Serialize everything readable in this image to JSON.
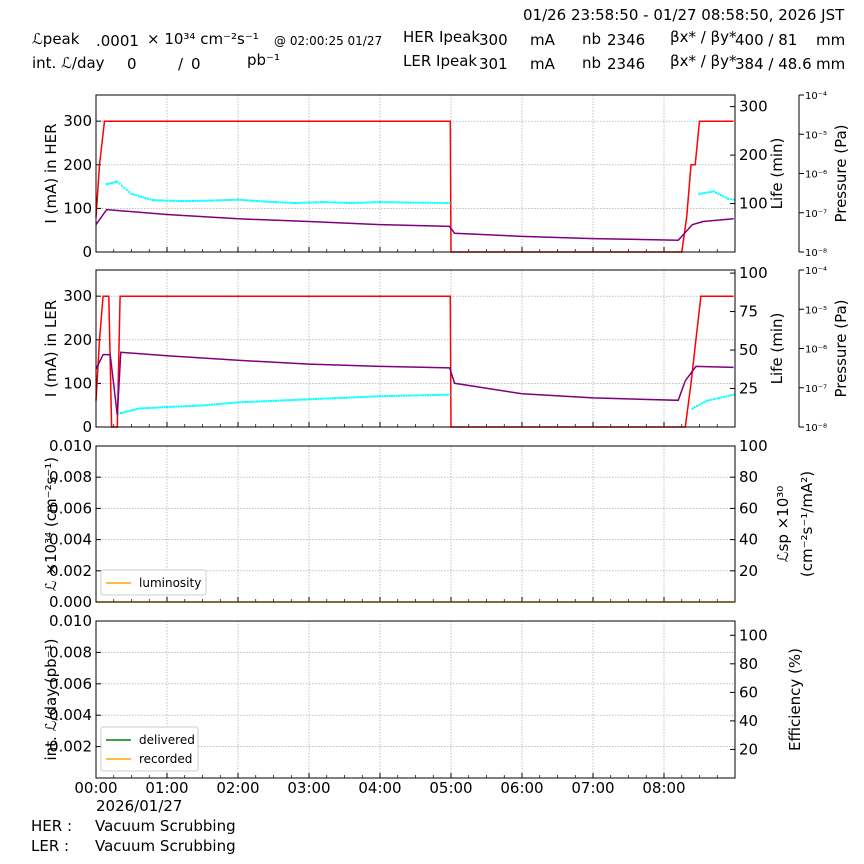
{
  "header": {
    "range": "01/26 23:58:50 - 01/27 08:58:50, 2026 JST",
    "lpeak_label": "ℒpeak",
    "lpeak_value": ".0001",
    "lpeak_unit": "× 10³⁴ cm⁻²s⁻¹",
    "lpeak_time": "@ 02:00:25 01/27",
    "intl_label": "int. ℒ/day",
    "intl_v1": "0",
    "intl_sep": "/",
    "intl_v2": "0",
    "intl_unit": "pb⁻¹",
    "her_label": "HER Ipeak",
    "her_ipeak": "300",
    "her_unit": "mA",
    "her_nb_label": "nb",
    "her_nb": "2346",
    "her_beta_label": "βx* / βy*",
    "her_beta": "400  / 81",
    "her_beta_unit": "mm",
    "ler_label": "LER Ipeak",
    "ler_ipeak": "301",
    "ler_unit": "mA",
    "ler_nb_label": "nb",
    "ler_nb": "2346",
    "ler_beta_label": "βx* / βy*",
    "ler_beta": "384  / 48.6",
    "ler_beta_unit": "mm"
  },
  "footer": {
    "date": "2026/01/27",
    "her_label": "HER :",
    "her_status": "Vacuum Scrubbing",
    "ler_label": "LER :",
    "ler_status": "Vacuum Scrubbing"
  },
  "colors": {
    "current": "#ff0000",
    "life": "#00ffff",
    "pressure": "#800080",
    "luminosity": "#ffa500",
    "delivered": "#008000",
    "recorded": "#ffa500"
  },
  "chart_data": [
    {
      "type": "line",
      "title": "",
      "ylabel": "I (mA) in HER",
      "y2label": "Life (min)",
      "y3label": "Pressure (Pa)",
      "xlim": [
        "00:00",
        "09:00"
      ],
      "ylim": [
        0,
        360
      ],
      "y2lim": [
        0,
        324
      ],
      "y3lim": [
        "1e-8",
        "1e-4"
      ],
      "x_ticks": [
        "00:00",
        "01:00",
        "02:00",
        "03:00",
        "04:00",
        "05:00",
        "06:00",
        "07:00",
        "08:00"
      ],
      "y_ticks": [
        "0",
        "100",
        "200",
        "300"
      ],
      "y2_ticks": [
        "100",
        "200",
        "300"
      ],
      "y3_ticks": [
        "10⁻⁸",
        "10⁻⁷",
        "10⁻⁶",
        "10⁻⁵",
        "10⁻⁴"
      ],
      "series": [
        {
          "name": "current",
          "points": [
            [
              0,
              80
            ],
            [
              0.05,
              200
            ],
            [
              0.12,
              300
            ],
            [
              4.99,
              300
            ],
            [
              5.0,
              0
            ],
            [
              8.25,
              0
            ],
            [
              8.32,
              80
            ],
            [
              8.38,
              200
            ],
            [
              8.44,
              200
            ],
            [
              8.5,
              300
            ],
            [
              8.98,
              300
            ]
          ]
        },
        {
          "name": "life",
          "points": [
            [
              0.15,
              140
            ],
            [
              0.3,
              145
            ],
            [
              0.5,
              120
            ],
            [
              0.8,
              107
            ],
            [
              1.2,
              105
            ],
            [
              1.6,
              106
            ],
            [
              2.0,
              108
            ],
            [
              2.4,
              104
            ],
            [
              2.8,
              101
            ],
            [
              3.2,
              103
            ],
            [
              3.6,
              101
            ],
            [
              4.0,
              103
            ],
            [
              4.4,
              102
            ],
            [
              4.98,
              101
            ],
            [
              8.5,
              120
            ],
            [
              8.7,
              125
            ],
            [
              8.9,
              110
            ],
            [
              8.98,
              108
            ]
          ]
        },
        {
          "name": "pressure",
          "points": [
            [
              0,
              5e-08
            ],
            [
              0.15,
              1.2e-07
            ],
            [
              1,
              9e-08
            ],
            [
              2,
              7e-08
            ],
            [
              3,
              6e-08
            ],
            [
              4,
              5e-08
            ],
            [
              4.98,
              4.5e-08
            ],
            [
              5.05,
              3e-08
            ],
            [
              6,
              2.5e-08
            ],
            [
              7,
              2.2e-08
            ],
            [
              8.2,
              2e-08
            ],
            [
              8.4,
              5e-08
            ],
            [
              8.55,
              6e-08
            ],
            [
              8.98,
              7e-08
            ]
          ]
        }
      ]
    },
    {
      "type": "line",
      "title": "",
      "ylabel": "I (mA) in LER",
      "y2label": "Life (min)",
      "y3label": "Pressure (Pa)",
      "xlim": [
        "00:00",
        "09:00"
      ],
      "ylim": [
        0,
        360
      ],
      "y2lim": [
        0,
        102
      ],
      "y3lim": [
        "1e-8",
        "1e-4"
      ],
      "x_ticks": [
        "00:00",
        "01:00",
        "02:00",
        "03:00",
        "04:00",
        "05:00",
        "06:00",
        "07:00",
        "08:00"
      ],
      "y_ticks": [
        "0",
        "100",
        "200",
        "300"
      ],
      "y2_ticks": [
        "25",
        "50",
        "75",
        "100"
      ],
      "y3_ticks": [
        "10⁻⁸",
        "10⁻⁷",
        "10⁻⁶",
        "10⁻⁵",
        "10⁻⁴"
      ],
      "series": [
        {
          "name": "current",
          "points": [
            [
              0,
              60
            ],
            [
              0.05,
              200
            ],
            [
              0.1,
              300
            ],
            [
              0.18,
              300
            ],
            [
              0.22,
              0
            ],
            [
              0.3,
              0
            ],
            [
              0.34,
              300
            ],
            [
              4.99,
              300
            ],
            [
              5.0,
              0
            ],
            [
              8.3,
              0
            ],
            [
              8.38,
              100
            ],
            [
              8.45,
              200
            ],
            [
              8.52,
              300
            ],
            [
              8.98,
              300
            ]
          ]
        },
        {
          "name": "life",
          "points": [
            [
              0.35,
              9
            ],
            [
              0.6,
              12
            ],
            [
              1.0,
              13
            ],
            [
              1.5,
              14
            ],
            [
              2.0,
              16
            ],
            [
              2.5,
              17
            ],
            [
              3.0,
              18
            ],
            [
              3.5,
              19
            ],
            [
              4.0,
              20
            ],
            [
              4.98,
              21
            ],
            [
              8.4,
              12
            ],
            [
              8.6,
              17
            ],
            [
              8.98,
              21
            ]
          ]
        },
        {
          "name": "pressure",
          "points": [
            [
              0,
              3e-07
            ],
            [
              0.1,
              7e-07
            ],
            [
              0.2,
              7e-07
            ],
            [
              0.3,
              2e-08
            ],
            [
              0.35,
              8e-07
            ],
            [
              1,
              6.5e-07
            ],
            [
              2,
              5e-07
            ],
            [
              3,
              4e-07
            ],
            [
              4,
              3.5e-07
            ],
            [
              4.98,
              3.2e-07
            ],
            [
              5.05,
              1.3e-07
            ],
            [
              6,
              7e-08
            ],
            [
              7,
              5.5e-08
            ],
            [
              8.2,
              4.8e-08
            ],
            [
              8.3,
              1.5e-07
            ],
            [
              8.45,
              3.5e-07
            ],
            [
              8.98,
              3.3e-07
            ]
          ]
        }
      ]
    },
    {
      "type": "line",
      "title": "",
      "ylabel": "ℒ ×10³⁴ (cm⁻²s⁻¹)",
      "y2label": "ℒsp ×10³⁰ (cm⁻²s⁻¹/mA²)",
      "xlim": [
        "00:00",
        "09:00"
      ],
      "ylim": [
        0,
        0.01
      ],
      "y2lim": [
        0,
        100
      ],
      "x_ticks": [
        "00:00",
        "01:00",
        "02:00",
        "03:00",
        "04:00",
        "05:00",
        "06:00",
        "07:00",
        "08:00"
      ],
      "y_ticks": [
        "0.000",
        "0.002",
        "0.004",
        "0.006",
        "0.008",
        "0.010"
      ],
      "y2_ticks": [
        "20",
        "40",
        "60",
        "80",
        "100"
      ],
      "legend": [
        "luminosity"
      ],
      "legend_position": "lower-left",
      "series": [
        {
          "name": "luminosity",
          "points": [
            [
              0,
              0
            ],
            [
              8.98,
              0
            ]
          ]
        }
      ]
    },
    {
      "type": "line",
      "title": "",
      "ylabel": "int. ℒ/day (pb⁻¹)",
      "y2label": "Efficiency (%)",
      "xlim": [
        "00:00",
        "09:00"
      ],
      "ylim": [
        0,
        0.01
      ],
      "y2lim": [
        0,
        110
      ],
      "x_ticks": [
        "00:00",
        "01:00",
        "02:00",
        "03:00",
        "04:00",
        "05:00",
        "06:00",
        "07:00",
        "08:00"
      ],
      "y_ticks": [
        "0.002",
        "0.004",
        "0.006",
        "0.008",
        "0.010"
      ],
      "y2_ticks": [
        "20",
        "40",
        "60",
        "80",
        "100"
      ],
      "legend": [
        "delivered",
        "recorded"
      ],
      "legend_position": "lower-left",
      "series": [
        {
          "name": "delivered",
          "points": []
        },
        {
          "name": "recorded",
          "points": []
        }
      ]
    }
  ]
}
